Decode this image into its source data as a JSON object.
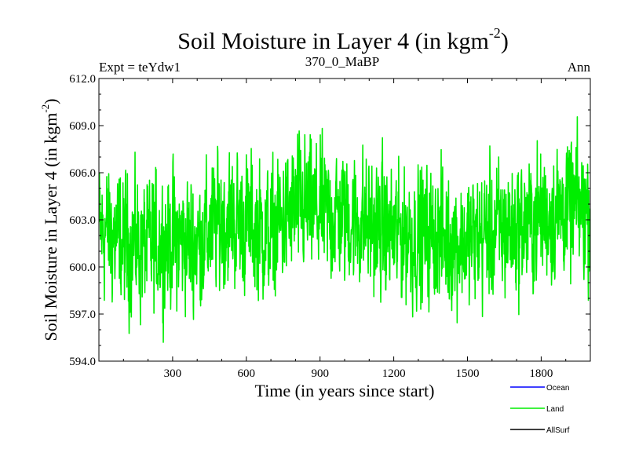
{
  "chart_data": {
    "type": "line",
    "title": "Soil Moisture in Layer 4 (in kgm",
    "title_superscript": "-2",
    "title_close": ")",
    "subtitle_left": "Expt = teYdw1",
    "subtitle_center": "370_0_MaBP",
    "subtitle_right": "Ann",
    "xlabel": "Time (in years since start)",
    "ylabel": "Soil Moisture in Layer 4 (in kgm",
    "ylabel_superscript": "-2",
    "ylabel_close": ")",
    "xlim": [
      0,
      2000
    ],
    "ylim": [
      594.0,
      612.0
    ],
    "x_ticks": [
      300,
      600,
      900,
      1200,
      1500,
      1800
    ],
    "x_tick_labels": [
      "300",
      "600",
      "900",
      "1200",
      "1500",
      "1800"
    ],
    "y_ticks": [
      594.0,
      597.0,
      600.0,
      603.0,
      606.0,
      609.0,
      612.0
    ],
    "y_tick_labels": [
      "594.0",
      "597.0",
      "600.0",
      "603.0",
      "606.0",
      "609.0",
      "612.0"
    ],
    "legend_position": "bottom-right, below plot",
    "series": [
      {
        "name": "Land",
        "color": "#00ee00",
        "note": "annual values, one per year; smoothed envelope shown by anchors, yearly noise amplitude ~3.5 kgm-2",
        "anchors_x": [
          0,
          100,
          200,
          300,
          400,
          500,
          600,
          700,
          800,
          900,
          1000,
          1100,
          1200,
          1300,
          1400,
          1500,
          1600,
          1700,
          1800,
          1900,
          2000
        ],
        "anchors_y": [
          602.5,
          601.5,
          601.2,
          601.8,
          601.5,
          603.0,
          602.8,
          602.0,
          603.8,
          603.5,
          603.2,
          602.8,
          602.0,
          602.0,
          601.8,
          601.5,
          602.3,
          602.5,
          603.2,
          603.8,
          603.5
        ],
        "yearly_spread": 3.6,
        "min": 595.2,
        "max": 610.0,
        "n_points": 2000
      }
    ],
    "legend": [
      {
        "name": "Ocean",
        "color": "#0000ff"
      },
      {
        "name": "Land",
        "color": "#00ee00"
      },
      {
        "name": "AllSurf",
        "color": "#000000"
      }
    ]
  }
}
